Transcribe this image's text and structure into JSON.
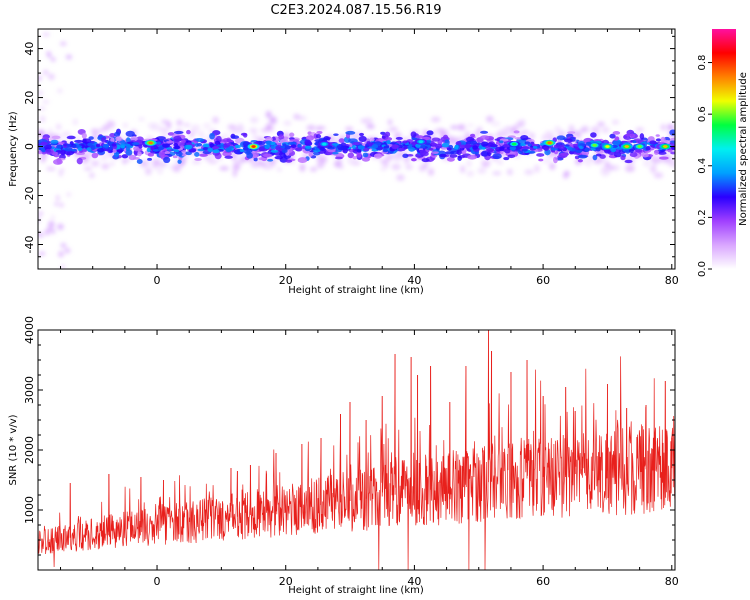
{
  "title": "C2E3.2024.087.15.56.R19",
  "chart_data": [
    {
      "type": "heatmap",
      "xlabel": "Height of straight line (km)",
      "ylabel": "Frequency (Hz)",
      "xlim": [
        -18.5,
        80.5
      ],
      "ylim": [
        -50,
        48
      ],
      "xticks": [
        0,
        20,
        40,
        60,
        80
      ],
      "yticks": [
        -40,
        -20,
        0,
        20,
        40
      ],
      "grid": false,
      "colorbar": {
        "label": "Normalized spectral amplitude",
        "ticks": [
          0.0,
          0.2,
          0.4,
          0.6,
          0.8
        ],
        "range": [
          0,
          0.93
        ],
        "colormap": [
          "#ffffff",
          "#d9a6ff",
          "#a040ff",
          "#2a00ff",
          "#00a0ff",
          "#00f0f0",
          "#00ff40",
          "#f0ff00",
          "#ff8000",
          "#ff0000",
          "#ff10a0"
        ]
      },
      "band_center_hz": 0,
      "band_halfwidth_hz": 5,
      "peak_points": [
        {
          "x": -1.0,
          "y": 1.5,
          "z": 0.75
        },
        {
          "x": 15.0,
          "y": 0.0,
          "z": 0.8
        },
        {
          "x": 26.0,
          "y": 1.0,
          "z": 0.45
        },
        {
          "x": 41.0,
          "y": 2.0,
          "z": 0.45
        },
        {
          "x": 55.5,
          "y": 1.0,
          "z": 0.55
        },
        {
          "x": 61.0,
          "y": 1.5,
          "z": 0.75
        },
        {
          "x": 68.0,
          "y": 0.5,
          "z": 0.6
        },
        {
          "x": 70.0,
          "y": 0.0,
          "z": 0.65
        },
        {
          "x": 73.0,
          "y": 0.0,
          "z": 0.7
        },
        {
          "x": 75.0,
          "y": 0.0,
          "z": 0.6
        },
        {
          "x": 79.0,
          "y": 0.0,
          "z": 0.7
        }
      ]
    },
    {
      "type": "line",
      "xlabel": "Height of straight line (km)",
      "ylabel": "SNR (10 * v/v)",
      "xlim": [
        -18.5,
        80.5
      ],
      "ylim": [
        0,
        4000
      ],
      "xticks": [
        0,
        20,
        40,
        60,
        80
      ],
      "yticks": [
        1000,
        2000,
        3000,
        4000
      ],
      "grid": false,
      "series": [
        {
          "color": "#e8201c",
          "baseline": [
            {
              "x": -18.5,
              "y": 450
            },
            {
              "x": -10,
              "y": 600
            },
            {
              "x": 0,
              "y": 750
            },
            {
              "x": 10,
              "y": 850
            },
            {
              "x": 20,
              "y": 1000
            },
            {
              "x": 30,
              "y": 1150
            },
            {
              "x": 40,
              "y": 1300
            },
            {
              "x": 50,
              "y": 1450
            },
            {
              "x": 60,
              "y": 1550
            },
            {
              "x": 70,
              "y": 1650
            },
            {
              "x": 80.5,
              "y": 1700
            }
          ],
          "peaks": [
            {
              "x": -13.5,
              "y": 1450
            },
            {
              "x": -7.5,
              "y": 1600
            },
            {
              "x": -2.5,
              "y": 1550
            },
            {
              "x": 1.0,
              "y": 1500
            },
            {
              "x": 11.5,
              "y": 1700
            },
            {
              "x": 12.5,
              "y": 1650
            },
            {
              "x": 14.5,
              "y": 1750
            },
            {
              "x": 17.0,
              "y": 1600
            },
            {
              "x": 18.5,
              "y": 1950
            },
            {
              "x": 22.5,
              "y": 2100
            },
            {
              "x": 25.5,
              "y": 2200
            },
            {
              "x": 28.5,
              "y": 2600
            },
            {
              "x": 30.0,
              "y": 2800
            },
            {
              "x": 32.5,
              "y": 2500
            },
            {
              "x": 35.0,
              "y": 2900
            },
            {
              "x": 37.0,
              "y": 3600
            },
            {
              "x": 39.5,
              "y": 3550
            },
            {
              "x": 40.5,
              "y": 3250
            },
            {
              "x": 42.5,
              "y": 3400
            },
            {
              "x": 45.5,
              "y": 2800
            },
            {
              "x": 48.0,
              "y": 3400
            },
            {
              "x": 51.5,
              "y": 4000
            },
            {
              "x": 52.0,
              "y": 3650
            },
            {
              "x": 55.0,
              "y": 3300
            },
            {
              "x": 57.5,
              "y": 3500
            },
            {
              "x": 60.0,
              "y": 2900
            },
            {
              "x": 63.5,
              "y": 3050
            },
            {
              "x": 65.0,
              "y": 2650
            },
            {
              "x": 70.0,
              "y": 3100
            },
            {
              "x": 73.0,
              "y": 2700
            },
            {
              "x": 76.0,
              "y": 2750
            },
            {
              "x": 79.0,
              "y": 3150
            },
            {
              "x": 80.0,
              "y": 2200
            }
          ],
          "dips": [
            {
              "x": -16.0,
              "y": 50
            },
            {
              "x": 34.5,
              "y": 0
            },
            {
              "x": 39.0,
              "y": 0
            },
            {
              "x": 48.5,
              "y": 0
            },
            {
              "x": 51.0,
              "y": 0
            }
          ]
        }
      ]
    }
  ]
}
